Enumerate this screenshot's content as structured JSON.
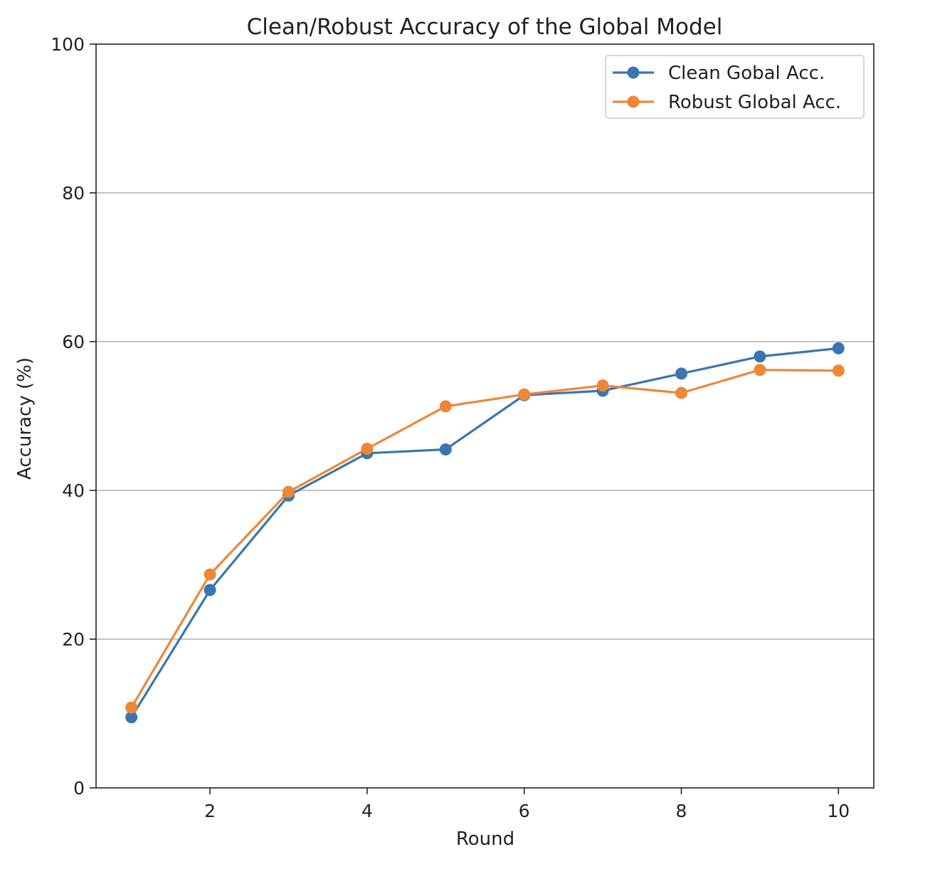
{
  "chart_data": {
    "type": "line",
    "title": "Clean/Robust Accuracy of the Global Model",
    "xlabel": "Round",
    "ylabel": "Accuracy (%)",
    "xlim": [
      0.55,
      10.45
    ],
    "ylim": [
      0,
      100
    ],
    "xticks": [
      2,
      4,
      6,
      8,
      10
    ],
    "yticks": [
      0,
      20,
      40,
      60,
      80,
      100
    ],
    "grid": "y-axis only",
    "legend_position": "top-right",
    "x": [
      1,
      2,
      3,
      4,
      5,
      6,
      7,
      8,
      9,
      10
    ],
    "series": [
      {
        "name": "Clean Gobal Acc.",
        "color": "#3b75af",
        "values": [
          9.5,
          26.6,
          39.3,
          45.0,
          45.5,
          52.8,
          53.4,
          55.7,
          58.0,
          59.1
        ]
      },
      {
        "name": "Robust Global Acc.",
        "color": "#ef8636",
        "values": [
          10.8,
          28.7,
          39.8,
          45.6,
          51.3,
          52.9,
          54.1,
          53.1,
          56.2,
          56.1
        ]
      }
    ]
  }
}
